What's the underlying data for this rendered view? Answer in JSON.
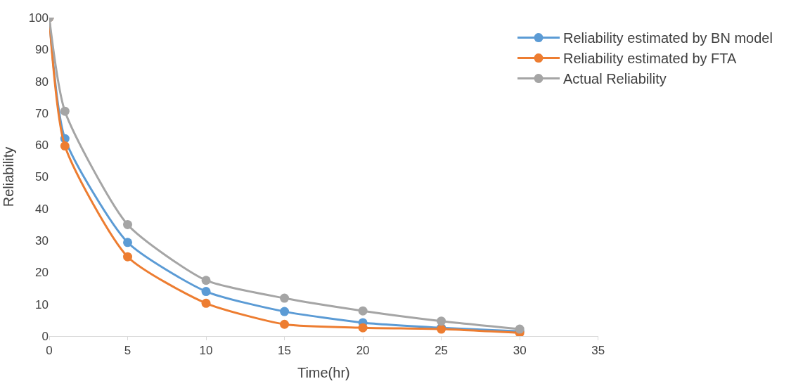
{
  "chart_data": {
    "type": "line",
    "xlabel": "Time(hr)",
    "ylabel": "Reliability",
    "x": [
      0,
      1,
      5,
      10,
      15,
      20,
      25,
      30
    ],
    "series": [
      {
        "name": "Reliability estimated by BN model",
        "color": "#5b9bd5",
        "values": [
          100,
          62,
          29.4,
          14,
          7.7,
          4.2,
          2.6,
          1.5
        ]
      },
      {
        "name": "Reliability estimated by FTA",
        "color": "#ed7d31",
        "values": [
          100,
          59.7,
          24.9,
          10.3,
          3.7,
          2.6,
          2.2,
          1.0
        ]
      },
      {
        "name": "Actual Reliability",
        "color": "#a5a5a5",
        "values": [
          100,
          70.6,
          35,
          17.5,
          11.9,
          7.9,
          4.7,
          2.2
        ]
      }
    ],
    "xlim": [
      0,
      35
    ],
    "xticks": [
      0,
      5,
      10,
      15,
      20,
      25,
      30,
      35
    ],
    "ylim": [
      0,
      100
    ],
    "yticks": [
      0,
      10,
      20,
      30,
      40,
      50,
      60,
      70,
      80,
      90,
      100
    ],
    "grid": false,
    "legend": "top right",
    "marker": "circle",
    "line_style": "solid"
  }
}
